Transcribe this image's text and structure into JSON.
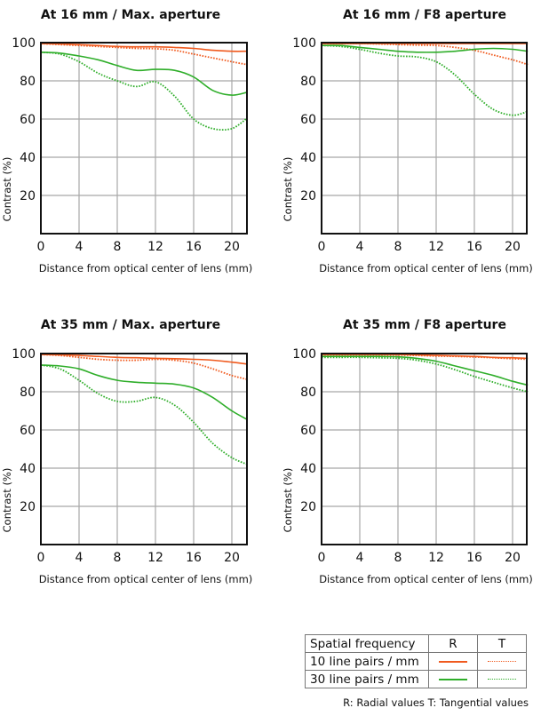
{
  "colors": {
    "lp10": "#f05a1e",
    "lp30": "#2fae2a",
    "grid": "#a8a8a8",
    "axis": "#111111"
  },
  "legend": {
    "header_label": "Spatial frequency",
    "header_r": "R",
    "header_t": "T",
    "row1_label": "10 line pairs / mm",
    "row2_label": "30 line pairs / mm",
    "note": "R: Radial values  T: Tangential values"
  },
  "chart_data": [
    {
      "type": "line",
      "title": "At 16 mm / Max. aperture",
      "xlabel": "Distance from optical center of lens (mm)",
      "ylabel": "Contrast (%)",
      "xlim": [
        0,
        21.6
      ],
      "ylim": [
        0,
        100
      ],
      "xticks": [
        "0",
        "4",
        "8",
        "12",
        "16",
        "20"
      ],
      "yticks": [
        "20",
        "40",
        "60",
        "80",
        "100"
      ],
      "grid": true,
      "x": [
        0,
        2,
        4,
        6,
        8,
        10,
        12,
        14,
        16,
        18,
        20,
        21.6
      ],
      "series": [
        {
          "name": "10 lp/mm R",
          "style": "solid",
          "freq": "lp10",
          "values": [
            99.5,
            99.3,
            99,
            98.5,
            98,
            97.8,
            97.8,
            97.5,
            97,
            96,
            95.5,
            95.5
          ]
        },
        {
          "name": "10 lp/mm T",
          "style": "dotted",
          "freq": "lp10",
          "values": [
            99.5,
            99,
            98.5,
            98,
            97.5,
            97,
            96.8,
            96,
            94,
            92,
            90,
            88.5
          ]
        },
        {
          "name": "30 lp/mm R",
          "style": "solid",
          "freq": "lp30",
          "values": [
            95,
            94.5,
            93,
            91,
            88,
            85.5,
            86,
            85.5,
            82,
            75,
            72.5,
            74
          ]
        },
        {
          "name": "30 lp/mm T",
          "style": "dotted",
          "freq": "lp30",
          "values": [
            95,
            94,
            90,
            84,
            80,
            77,
            79.5,
            72,
            60,
            55,
            55,
            60.5
          ]
        }
      ]
    },
    {
      "type": "line",
      "title": "At 16 mm / F8 aperture",
      "xlabel": "Distance from optical center of lens (mm)",
      "ylabel": "Contrast (%)",
      "xlim": [
        0,
        21.6
      ],
      "ylim": [
        0,
        100
      ],
      "xticks": [
        "0",
        "4",
        "8",
        "12",
        "16",
        "20"
      ],
      "yticks": [
        "20",
        "40",
        "60",
        "80",
        "100"
      ],
      "grid": true,
      "x": [
        0,
        2,
        4,
        6,
        8,
        10,
        12,
        14,
        16,
        18,
        20,
        21.6
      ],
      "series": [
        {
          "name": "10 lp/mm R",
          "style": "solid",
          "freq": "lp10",
          "values": [
            99.5,
            99.5,
            99.5,
            99.5,
            99.5,
            99.5,
            99.5,
            99.5,
            99.5,
            99.5,
            99.5,
            99.5
          ]
        },
        {
          "name": "10 lp/mm T",
          "style": "dotted",
          "freq": "lp10",
          "values": [
            99.5,
            99.5,
            99.5,
            99.3,
            99,
            98.7,
            98.5,
            97.5,
            96,
            93.5,
            91,
            88.5
          ]
        },
        {
          "name": "30 lp/mm R",
          "style": "solid",
          "freq": "lp30",
          "values": [
            98.5,
            98.5,
            97.5,
            96.5,
            95.5,
            95,
            95,
            95.5,
            96.5,
            97,
            96.5,
            95.5
          ]
        },
        {
          "name": "30 lp/mm T",
          "style": "dotted",
          "freq": "lp30",
          "values": [
            98.5,
            98,
            96.5,
            94.5,
            93,
            92.5,
            90,
            83,
            73,
            65,
            62,
            64
          ]
        }
      ]
    },
    {
      "type": "line",
      "title": "At 35 mm / Max. aperture",
      "xlabel": "Distance from optical center of lens (mm)",
      "ylabel": "Contrast (%)",
      "xlim": [
        0,
        21.6
      ],
      "ylim": [
        0,
        100
      ],
      "xticks": [
        "0",
        "4",
        "8",
        "12",
        "16",
        "20"
      ],
      "yticks": [
        "20",
        "40",
        "60",
        "80",
        "100"
      ],
      "grid": true,
      "x": [
        0,
        2,
        4,
        6,
        8,
        10,
        12,
        14,
        16,
        18,
        20,
        21.6
      ],
      "series": [
        {
          "name": "10 lp/mm R",
          "style": "solid",
          "freq": "lp10",
          "values": [
            99.5,
            99.3,
            99,
            98.5,
            98,
            97.8,
            97.5,
            97.3,
            97,
            96.5,
            95.5,
            94.5
          ]
        },
        {
          "name": "10 lp/mm T",
          "style": "dotted",
          "freq": "lp10",
          "values": [
            99.5,
            99,
            98,
            97,
            96.5,
            96.5,
            97,
            96.5,
            95,
            92,
            88.5,
            86.5
          ]
        },
        {
          "name": "30 lp/mm R",
          "style": "solid",
          "freq": "lp30",
          "values": [
            94,
            93.5,
            92,
            88.5,
            86,
            85,
            84.5,
            84,
            82,
            77,
            70,
            65.5
          ]
        },
        {
          "name": "30 lp/mm T",
          "style": "dotted",
          "freq": "lp30",
          "values": [
            94,
            92,
            86,
            79,
            75,
            75,
            77,
            73,
            64,
            53,
            45.5,
            42
          ]
        }
      ]
    },
    {
      "type": "line",
      "title": "At 35 mm / F8 aperture",
      "xlabel": "Distance from optical center of lens (mm)",
      "ylabel": "Contrast (%)",
      "xlim": [
        0,
        21.6
      ],
      "ylim": [
        0,
        100
      ],
      "xticks": [
        "0",
        "4",
        "8",
        "12",
        "16",
        "20"
      ],
      "yticks": [
        "20",
        "40",
        "60",
        "80",
        "100"
      ],
      "grid": true,
      "x": [
        0,
        2,
        4,
        6,
        8,
        10,
        12,
        14,
        16,
        18,
        20,
        21.6
      ],
      "series": [
        {
          "name": "10 lp/mm R",
          "style": "solid",
          "freq": "lp10",
          "values": [
            99.5,
            99.5,
            99.5,
            99.5,
            99.5,
            99.3,
            99,
            98.8,
            98.5,
            98,
            97.8,
            97.5
          ]
        },
        {
          "name": "10 lp/mm T",
          "style": "dotted",
          "freq": "lp10",
          "values": [
            99.3,
            99.3,
            99.3,
            99.3,
            99.2,
            99,
            98.7,
            98.5,
            98.2,
            97.8,
            97.3,
            97
          ]
        },
        {
          "name": "30 lp/mm R",
          "style": "solid",
          "freq": "lp30",
          "values": [
            98.5,
            98.5,
            98.5,
            98.5,
            98.3,
            97.5,
            96,
            93.5,
            91,
            88.5,
            85.5,
            83.5
          ]
        },
        {
          "name": "30 lp/mm T",
          "style": "dotted",
          "freq": "lp30",
          "values": [
            98,
            98,
            98,
            97.8,
            97.5,
            96.5,
            94.5,
            91.5,
            88,
            85,
            82,
            80
          ]
        }
      ]
    }
  ]
}
